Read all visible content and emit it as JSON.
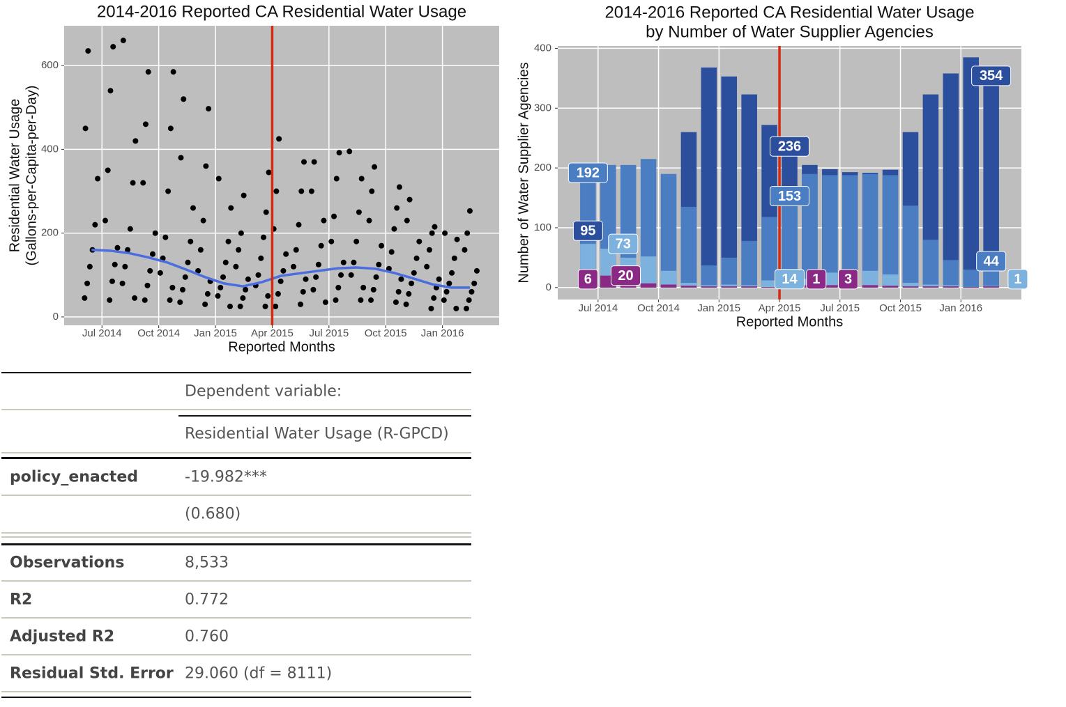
{
  "chart_data": [
    {
      "type": "scatter",
      "title": "2014-2016 Reported CA Residential Water Usage",
      "xlabel": "Reported Months",
      "ylabel": [
        "Residential Water Usage",
        "(Gallons-per-Capita-per-Day)"
      ],
      "color": "#000000",
      "x": [
        "2014-06",
        "2014-06",
        "2014-06",
        "2014-06",
        "2014-06",
        "2014-06",
        "2014-06",
        "2014-06",
        "2014-07",
        "2014-07",
        "2014-07",
        "2014-07",
        "2014-07",
        "2014-07",
        "2014-07",
        "2014-07",
        "2014-08",
        "2014-08",
        "2014-08",
        "2014-08",
        "2014-08",
        "2014-08",
        "2014-08",
        "2014-08",
        "2014-09",
        "2014-09",
        "2014-09",
        "2014-09",
        "2014-09",
        "2014-09",
        "2014-09",
        "2014-09",
        "2014-10",
        "2014-10",
        "2014-10",
        "2014-10",
        "2014-10",
        "2014-10",
        "2014-10",
        "2014-10",
        "2014-11",
        "2014-11",
        "2014-11",
        "2014-11",
        "2014-11",
        "2014-11",
        "2014-11",
        "2014-11",
        "2014-12",
        "2014-12",
        "2014-12",
        "2014-12",
        "2014-12",
        "2014-12",
        "2014-12",
        "2014-12",
        "2015-01",
        "2015-01",
        "2015-01",
        "2015-01",
        "2015-01",
        "2015-01",
        "2015-01",
        "2015-01",
        "2015-02",
        "2015-02",
        "2015-02",
        "2015-02",
        "2015-02",
        "2015-02",
        "2015-02",
        "2015-02",
        "2015-03",
        "2015-03",
        "2015-03",
        "2015-03",
        "2015-03",
        "2015-03",
        "2015-03",
        "2015-03",
        "2015-04",
        "2015-04",
        "2015-04",
        "2015-04",
        "2015-04",
        "2015-04",
        "2015-04",
        "2015-04",
        "2015-05",
        "2015-05",
        "2015-05",
        "2015-05",
        "2015-05",
        "2015-05",
        "2015-05",
        "2015-05",
        "2015-06",
        "2015-06",
        "2015-06",
        "2015-06",
        "2015-06",
        "2015-06",
        "2015-06",
        "2015-06",
        "2015-07",
        "2015-07",
        "2015-07",
        "2015-07",
        "2015-07",
        "2015-07",
        "2015-07",
        "2015-07",
        "2015-08",
        "2015-08",
        "2015-08",
        "2015-08",
        "2015-08",
        "2015-08",
        "2015-08",
        "2015-08",
        "2015-09",
        "2015-09",
        "2015-09",
        "2015-09",
        "2015-09",
        "2015-09",
        "2015-09",
        "2015-09",
        "2015-10",
        "2015-10",
        "2015-10",
        "2015-10",
        "2015-10",
        "2015-10",
        "2015-10",
        "2015-10",
        "2015-11",
        "2015-11",
        "2015-11",
        "2015-11",
        "2015-11",
        "2015-11",
        "2015-11",
        "2015-11",
        "2015-12",
        "2015-12",
        "2015-12",
        "2015-12",
        "2015-12",
        "2015-12",
        "2015-12",
        "2015-12",
        "2016-01",
        "2016-01",
        "2016-01",
        "2016-01",
        "2016-01",
        "2016-01",
        "2016-01",
        "2016-01",
        "2016-02",
        "2016-02",
        "2016-02",
        "2016-02",
        "2016-02",
        "2016-02",
        "2016-02",
        "2016-02"
      ],
      "values": [
        45,
        80,
        120,
        160,
        220,
        330,
        450,
        635,
        40,
        85,
        125,
        165,
        230,
        350,
        540,
        645,
        45,
        80,
        120,
        160,
        210,
        320,
        420,
        660,
        40,
        75,
        110,
        150,
        200,
        320,
        460,
        585,
        40,
        70,
        105,
        140,
        190,
        300,
        450,
        585,
        35,
        65,
        95,
        130,
        180,
        260,
        380,
        520,
        30,
        55,
        85,
        110,
        160,
        230,
        360,
        497,
        25,
        50,
        70,
        95,
        130,
        180,
        260,
        330,
        25,
        45,
        65,
        90,
        120,
        160,
        200,
        290,
        25,
        50,
        75,
        100,
        140,
        190,
        250,
        345,
        25,
        55,
        85,
        110,
        150,
        210,
        300,
        425,
        30,
        60,
        90,
        120,
        160,
        220,
        300,
        370,
        35,
        65,
        95,
        125,
        170,
        230,
        300,
        370,
        40,
        70,
        100,
        130,
        180,
        240,
        330,
        392,
        40,
        70,
        100,
        130,
        180,
        250,
        330,
        395,
        40,
        65,
        95,
        125,
        170,
        230,
        300,
        358,
        35,
        60,
        90,
        115,
        155,
        210,
        260,
        310,
        30,
        55,
        80,
        105,
        140,
        180,
        230,
        280,
        20,
        45,
        70,
        90,
        120,
        160,
        200,
        215,
        20,
        40,
        60,
        80,
        105,
        140,
        185,
        200,
        20,
        40,
        60,
        80,
        110,
        160,
        200,
        253
      ],
      "trend": {
        "color": "#4a6ee0",
        "x": [
          "2014-06",
          "2014-07",
          "2014-08",
          "2014-09",
          "2014-10",
          "2014-11",
          "2014-12",
          "2015-01",
          "2015-02",
          "2015-03",
          "2015-04",
          "2015-05",
          "2015-06",
          "2015-07",
          "2015-08",
          "2015-09",
          "2015-10",
          "2015-11",
          "2015-12",
          "2016-01",
          "2016-02"
        ],
        "values": [
          160,
          158,
          152,
          142,
          130,
          113,
          95,
          80,
          73,
          83,
          98,
          104,
          110,
          116,
          118,
          115,
          105,
          92,
          78,
          70,
          70
        ]
      },
      "reference_line": {
        "x": "2015-04",
        "color": "#d62a10"
      },
      "xlim": [
        "2014-05",
        "2016-04"
      ],
      "xticks": [
        {
          "value": "2014-07",
          "label": "Jul 2014"
        },
        {
          "value": "2014-10",
          "label": "Oct 2014"
        },
        {
          "value": "2015-01",
          "label": "Jan 2015"
        },
        {
          "value": "2015-04",
          "label": "Apr 2015"
        },
        {
          "value": "2015-07",
          "label": "Jul 2015"
        },
        {
          "value": "2015-10",
          "label": "Oct 2015"
        },
        {
          "value": "2016-01",
          "label": "Jan 2016"
        }
      ],
      "ylim": [
        -20,
        695
      ],
      "yticks": [
        0,
        200,
        400,
        600
      ],
      "grid": true
    },
    {
      "type": "bar",
      "title": [
        "2014-2016 Reported CA Residential Water Usage",
        "by Number of Water Supplier Agencies"
      ],
      "xlabel": "Reported Months",
      "ylabel": "Number of Water Supplier Agencies",
      "x": [
        "2014-06",
        "2014-07",
        "2014-08",
        "2014-09",
        "2014-10",
        "2014-11",
        "2014-12",
        "2015-01",
        "2015-02",
        "2015-03",
        "2015-04",
        "2015-05",
        "2015-06",
        "2015-07",
        "2015-08",
        "2015-09",
        "2015-10",
        "2015-11",
        "2015-12",
        "2016-01",
        "2016-02"
      ],
      "series": [
        {
          "color": "#2b4f9c",
          "values": [
            95,
            50,
            40,
            30,
            20,
            260,
            368,
            353,
            323,
            272,
            236,
            205,
            198,
            193,
            192,
            197,
            260,
            323,
            358,
            385,
            354
          ],
          "value_labels": [
            "95",
            null,
            null,
            null,
            null,
            null,
            null,
            null,
            null,
            null,
            "236",
            null,
            null,
            null,
            null,
            null,
            null,
            null,
            null,
            null,
            "354"
          ]
        },
        {
          "color": "#4a7dc1",
          "values": [
            192,
            205,
            205,
            215,
            190,
            135,
            37,
            50,
            78,
            118,
            153,
            190,
            188,
            188,
            190,
            188,
            137,
            80,
            46,
            30,
            44
          ],
          "value_labels": [
            "192",
            null,
            null,
            null,
            null,
            null,
            null,
            null,
            null,
            null,
            "153",
            null,
            null,
            null,
            null,
            null,
            null,
            null,
            null,
            null,
            "44"
          ]
        },
        {
          "color": "#7eb2de",
          "values": [
            73,
            65,
            50,
            52,
            28,
            8,
            4,
            5,
            4,
            12,
            14,
            15,
            25,
            25,
            28,
            22,
            8,
            5,
            4,
            1,
            3
          ],
          "value_labels": [
            "73",
            null,
            null,
            null,
            null,
            null,
            null,
            null,
            null,
            null,
            "14",
            null,
            null,
            null,
            null,
            null,
            null,
            null,
            null,
            "1",
            null
          ]
        },
        {
          "color": "#8a2a86",
          "values": [
            6,
            20,
            10,
            7,
            5,
            3,
            2,
            2,
            2,
            1,
            3,
            4,
            4,
            3,
            4,
            3,
            2,
            2,
            2,
            1,
            2
          ],
          "value_labels": [
            "6",
            "20",
            null,
            null,
            null,
            null,
            null,
            null,
            null,
            "1",
            "3",
            null,
            null,
            null,
            null,
            null,
            null,
            null,
            null,
            null,
            null
          ]
        }
      ],
      "reference_line": {
        "x": "2015-04",
        "color": "#d62a10"
      },
      "xlim": [
        "2014-05",
        "2016-04"
      ],
      "xticks": [
        {
          "value": "2014-07",
          "label": "Jul 2014"
        },
        {
          "value": "2014-10",
          "label": "Oct 2014"
        },
        {
          "value": "2015-01",
          "label": "Jan 2015"
        },
        {
          "value": "2015-04",
          "label": "Apr 2015"
        },
        {
          "value": "2015-07",
          "label": "Jul 2015"
        },
        {
          "value": "2015-10",
          "label": "Oct 2015"
        },
        {
          "value": "2016-01",
          "label": "Jan 2016"
        }
      ],
      "ylim": [
        -20,
        404
      ],
      "yticks": [
        0,
        100,
        200,
        300,
        400
      ],
      "grid": true
    }
  ],
  "table": {
    "header": [
      "Dependent variable:",
      "Residential Water Usage (R-GPCD)"
    ],
    "coefficient": {
      "name": "policy_enacted",
      "estimate": "-19.982***",
      "se": "(0.680)"
    },
    "stats": [
      [
        "Observations",
        "8,533"
      ],
      [
        "R2",
        "0.772"
      ],
      [
        "Adjusted R2",
        "0.760"
      ],
      [
        "Residual Std. Error",
        "29.060 (df = 8111)"
      ]
    ]
  }
}
